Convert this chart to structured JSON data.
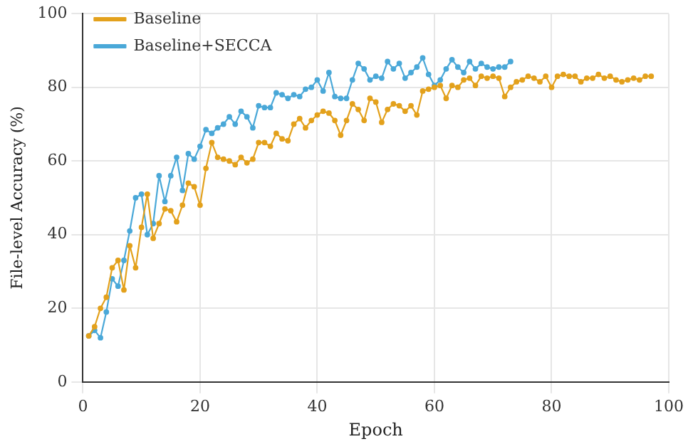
{
  "chart_data": {
    "type": "line",
    "xlabel": "Epoch",
    "ylabel": "File-level Accuracy (%)",
    "xlim": [
      0,
      100
    ],
    "xticks": [
      0,
      20,
      40,
      60,
      80,
      100
    ],
    "ylim": [
      0,
      100
    ],
    "yticks": [
      0,
      20,
      40,
      60,
      80,
      100
    ],
    "grid": true,
    "legend": "top left",
    "marker": "circle",
    "line_style": "solid",
    "series": [
      {
        "name": "Baseline",
        "color": "#e3a11c",
        "x": [
          1,
          2,
          3,
          4,
          5,
          6,
          7,
          8,
          9,
          10,
          11,
          12,
          13,
          14,
          15,
          16,
          17,
          18,
          19,
          20,
          21,
          22,
          23,
          24,
          25,
          26,
          27,
          28,
          29,
          30,
          31,
          32,
          33,
          34,
          35,
          36,
          37,
          38,
          39,
          40,
          41,
          42,
          43,
          44,
          45,
          46,
          47,
          48,
          49,
          50,
          51,
          52,
          53,
          54,
          55,
          56,
          57,
          58,
          59,
          60,
          61,
          62,
          63,
          64,
          65,
          66,
          67,
          68,
          69,
          70,
          71,
          72,
          73,
          74,
          75,
          76,
          77,
          78,
          79,
          80,
          81,
          82,
          83,
          84,
          85,
          86,
          87,
          88,
          89,
          90,
          91,
          92,
          93,
          94,
          95,
          96,
          97
        ],
        "values": [
          12.5,
          15,
          20,
          23,
          31,
          33,
          25,
          37,
          31,
          42,
          51,
          39,
          43,
          47,
          46.5,
          43.5,
          48,
          54,
          53,
          48,
          58,
          65,
          61,
          60.5,
          60,
          59,
          61,
          59.5,
          60.5,
          65,
          65,
          64,
          67.5,
          66,
          65.5,
          70,
          71.5,
          69,
          71,
          72.5,
          73.5,
          73,
          71,
          67,
          71,
          75.5,
          74,
          71,
          77,
          76,
          70.5,
          74,
          75.5,
          75,
          73.5,
          75,
          72.5,
          79,
          79.5,
          80,
          80.5,
          77,
          80.5,
          80,
          82,
          82.5,
          80.5,
          83,
          82.5,
          83,
          82.5,
          77.5,
          80,
          81.5,
          82,
          83,
          82.5,
          81.5,
          83,
          80,
          83,
          83.5,
          83,
          83,
          81.5,
          82.5,
          82.5,
          83.5,
          82.5,
          83,
          82,
          81.5,
          82,
          82.5,
          82,
          83,
          83
        ]
      },
      {
        "name": "Baseline+SECCA",
        "color": "#4aa8d8",
        "x": [
          1,
          2,
          3,
          4,
          5,
          6,
          7,
          8,
          9,
          10,
          11,
          12,
          13,
          14,
          15,
          16,
          17,
          18,
          19,
          20,
          21,
          22,
          23,
          24,
          25,
          26,
          27,
          28,
          29,
          30,
          31,
          32,
          33,
          34,
          35,
          36,
          37,
          38,
          39,
          40,
          41,
          42,
          43,
          44,
          45,
          46,
          47,
          48,
          49,
          50,
          51,
          52,
          53,
          54,
          55,
          56,
          57,
          58,
          59,
          60,
          61,
          62,
          63,
          64,
          65,
          66,
          67,
          68,
          69,
          70,
          71,
          72,
          73
        ],
        "values": [
          12.5,
          14,
          12,
          19,
          28,
          26,
          33,
          41,
          50,
          51,
          40,
          43,
          56,
          49,
          56,
          61,
          52,
          62,
          60.5,
          64,
          68.5,
          67.5,
          69,
          70,
          72,
          70,
          73.5,
          72,
          69,
          75,
          74.5,
          74.5,
          78.5,
          78,
          77,
          78,
          77.5,
          79.5,
          80,
          82,
          79,
          84,
          77.5,
          77,
          77,
          82,
          86.5,
          85,
          82,
          83,
          82.5,
          87,
          85,
          86.5,
          82.5,
          84,
          85.5,
          88,
          83.5,
          80.5,
          82,
          85,
          87.5,
          85.5,
          84,
          87,
          85,
          86.5,
          85.5,
          85,
          85.5,
          85.5,
          87
        ]
      }
    ]
  }
}
